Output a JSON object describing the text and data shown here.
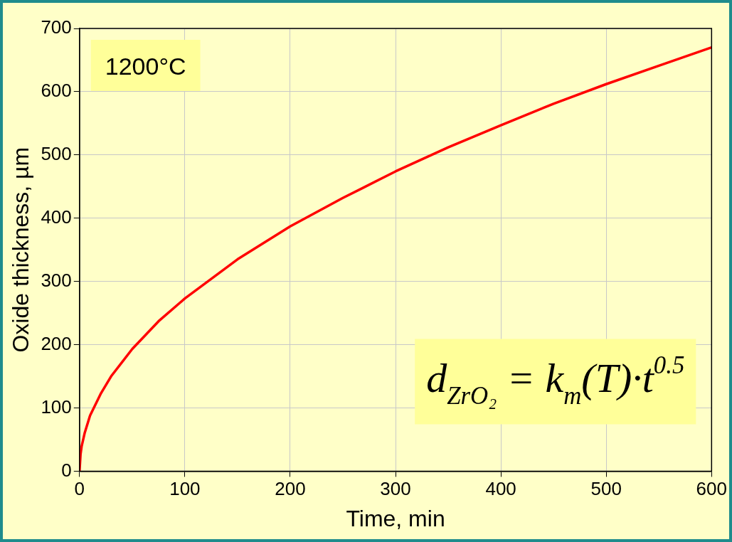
{
  "chart_data": {
    "type": "line",
    "xlabel": "Time, min",
    "ylabel": "Oxide thickness, µm",
    "x": [
      0,
      1,
      2,
      5,
      10,
      20,
      30,
      50,
      75,
      100,
      150,
      200,
      250,
      300,
      350,
      400,
      450,
      500,
      550,
      600
    ],
    "series": [
      {
        "color": "#ff0000",
        "values": [
          0,
          27,
          39,
          61,
          88,
          122,
          150,
          193,
          237,
          273,
          335,
          387,
          432,
          474,
          512,
          547,
          581,
          612,
          641,
          670
        ]
      }
    ],
    "xlim": [
      0,
      600
    ],
    "xticks": [
      0,
      100,
      200,
      300,
      400,
      500,
      600
    ],
    "ylim": [
      0,
      700
    ],
    "yticks": [
      0,
      100,
      200,
      300,
      400,
      500,
      600,
      700
    ],
    "grid": true,
    "legend": false,
    "marker": "none",
    "line_style": "solid",
    "annotations": [
      "1200°C",
      "d$_{ZrO₂}$ = k$_{m}$(T)·t$^{0.5}$"
    ]
  }
}
